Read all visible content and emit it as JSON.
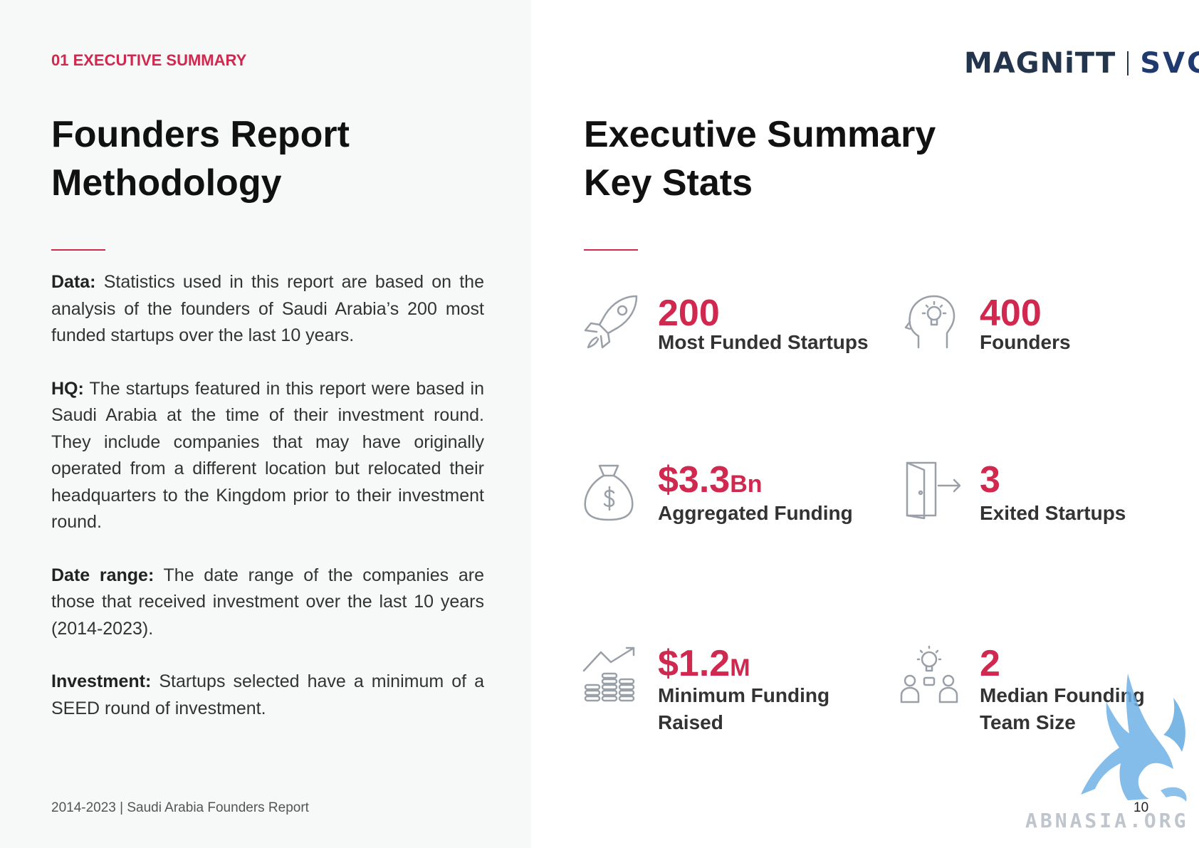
{
  "header": {
    "section_label": "01 EXECUTIVE SUMMARY",
    "logo_left": "MAGNiTT",
    "logo_right": "SVC"
  },
  "left": {
    "title_line1": "Founders Report",
    "title_line2": "Methodology",
    "paragraphs": [
      {
        "label": "Data:",
        "text": " Statistics used in this report are based on the analysis of the founders of Saudi Arabia’s 200 most funded startups over the last 10 years."
      },
      {
        "label": "HQ:",
        "text": " The startups featured in this report were based in Saudi Arabia at the time of their investment round. They include companies that may have originally operated from a different location but relocated their headquarters to the Kingdom prior to their investment round."
      },
      {
        "label": "Date range:",
        "text": " The date range of the companies are those that received investment over the last 10 years  (2014-2023)."
      },
      {
        "label": "Investment:",
        "text": " Startups selected have a minimum of a SEED round of investment."
      }
    ]
  },
  "right": {
    "title_line1": "Executive Summary",
    "title_line2": "Key Stats",
    "stats": [
      {
        "value": "200",
        "unit": "",
        "label": "Most Funded Startups",
        "icon": "rocket-icon"
      },
      {
        "value": "400",
        "unit": "",
        "label": "Founders",
        "icon": "idea-head-icon"
      },
      {
        "value": "$3.3",
        "unit": "Bn",
        "label": "Aggregated Funding",
        "icon": "money-bag-icon"
      },
      {
        "value": "3",
        "unit": "",
        "label": "Exited Startups",
        "icon": "exit-door-icon"
      },
      {
        "value": "$1.2",
        "unit": "M",
        "label": "Minimum Funding Raised",
        "icon": "coins-growth-icon"
      },
      {
        "value": "2",
        "unit": "",
        "label": "Median Founding Team Size",
        "icon": "team-idea-icon"
      }
    ]
  },
  "footer": {
    "left_text": "2014-2023 | Saudi Arabia Founders Report",
    "page_number": "10",
    "watermark_text": "ABNASIA.ORG"
  },
  "colors": {
    "accent": "#d0284e",
    "icon_gray": "#9aa0a8",
    "panel_bg": "#f7f8f8"
  }
}
